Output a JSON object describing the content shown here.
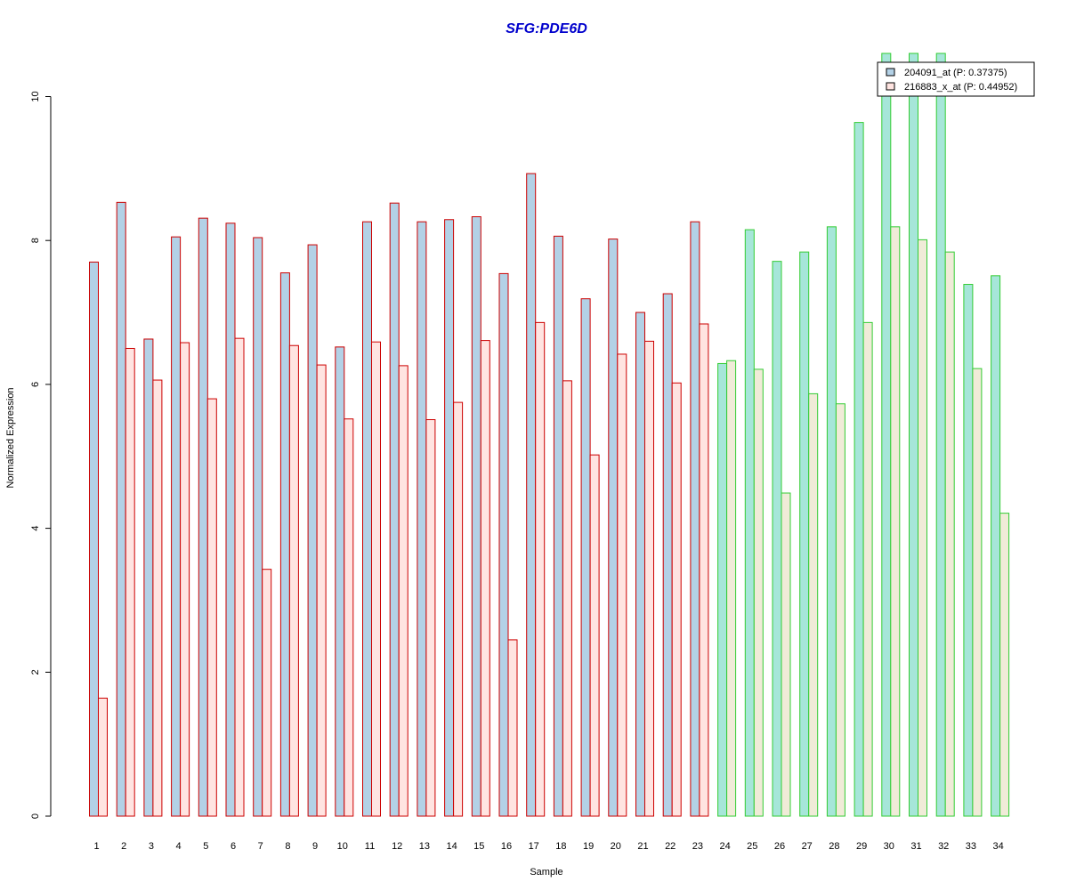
{
  "chart_data": {
    "type": "bar",
    "title": "SFG:PDE6D",
    "xlabel": "Sample",
    "ylabel": "Normalized Expression",
    "ylim": [
      0,
      10.6
    ],
    "yticks": [
      0,
      2,
      4,
      6,
      8,
      10
    ],
    "grid": false,
    "legend_position": "top-right",
    "categories": [
      "1",
      "2",
      "3",
      "4",
      "5",
      "6",
      "7",
      "8",
      "9",
      "10",
      "11",
      "12",
      "13",
      "14",
      "15",
      "16",
      "17",
      "18",
      "19",
      "20",
      "21",
      "22",
      "23",
      "24",
      "25",
      "26",
      "27",
      "28",
      "29",
      "30",
      "31",
      "32",
      "33",
      "34"
    ],
    "series": [
      {
        "name": "204091_at (P: 0.37375)",
        "values": [
          7.7,
          8.53,
          6.63,
          8.05,
          8.31,
          8.24,
          8.04,
          7.55,
          7.94,
          6.52,
          8.26,
          8.52,
          8.26,
          8.29,
          8.33,
          7.54,
          8.93,
          8.06,
          7.19,
          8.02,
          7.0,
          7.26,
          8.26,
          6.29,
          8.15,
          7.71,
          7.84,
          8.19,
          9.64,
          10.6,
          10.6,
          10.6,
          7.39,
          7.51
        ]
      },
      {
        "name": "216883_x_at (P: 0.44952)",
        "values": [
          1.64,
          6.5,
          6.06,
          6.58,
          5.8,
          6.64,
          3.43,
          6.54,
          6.27,
          5.52,
          6.59,
          6.26,
          5.51,
          5.75,
          6.61,
          2.45,
          6.86,
          6.05,
          5.02,
          6.42,
          6.6,
          6.02,
          6.84,
          6.33,
          6.21,
          4.49,
          5.87,
          5.73,
          6.86,
          8.19,
          8.01,
          7.84,
          6.22,
          4.21
        ]
      }
    ],
    "group_split_after": 23,
    "colors": {
      "title": "#0000cc",
      "series1_fill": "#b3d1e6",
      "series2_fill_group1": "#ffe4e1",
      "series2_fill_group2": "#f0ebd8",
      "series1_fill_group2": "#a6e6d9",
      "border_group1": "#cc0000",
      "border_group2": "#33cc33",
      "legend_swatch1": "#b3d1e6",
      "legend_swatch2": "#ffe4e1"
    }
  }
}
